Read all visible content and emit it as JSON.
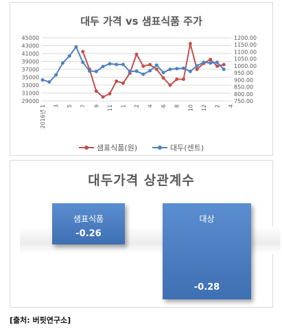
{
  "chart_data": [
    {
      "type": "line",
      "title": "대두 가격 vs 샘표식품 주가",
      "x": [
        "2016년 1",
        "2",
        "3",
        "4",
        "5",
        "6",
        "7",
        "8",
        "9",
        "10",
        "11",
        "12",
        "1",
        "2",
        "3",
        "4",
        "5",
        "6",
        "7",
        "8",
        "9",
        "10",
        "11",
        "12",
        "1",
        "2",
        "3",
        "4",
        "5"
      ],
      "xtick_labels": [
        "2016년 1",
        "3",
        "5",
        "7",
        "9",
        "11",
        "1",
        "2",
        "4",
        "6",
        "8",
        "10",
        "12",
        "2",
        "4"
      ],
      "ylim_left": [
        29000,
        45000
      ],
      "yticks_left": [
        "45000",
        "43000",
        "41000",
        "39000",
        "37000",
        "35000",
        "33000",
        "31000",
        "29000"
      ],
      "ylim_right": [
        750,
        1200
      ],
      "yticks_right": [
        "1200.00",
        "1150.00",
        "1100.00",
        "1050.00",
        "1000.00",
        "950.00",
        "900.00",
        "850.00",
        "800.00",
        "750.00"
      ],
      "series": [
        {
          "name": "샘표식품(원)",
          "axis": "left",
          "color": "#c0504d",
          "values": [
            null,
            null,
            null,
            null,
            null,
            null,
            41500,
            37000,
            31500,
            30000,
            30800,
            34000,
            33500,
            36000,
            40800,
            37800,
            38200,
            37000,
            34800,
            33000,
            34500,
            34500,
            43500,
            37000,
            38500,
            39500,
            37800,
            38200,
            null
          ]
        },
        {
          "name": "대두(센트)",
          "axis": "right",
          "color": "#4f81bd",
          "values": [
            900,
            885,
            935,
            1020,
            1070,
            1135,
            1025,
            963,
            960,
            995,
            1015,
            1010,
            1010,
            960,
            962,
            940,
            965,
            1005,
            952,
            975,
            980,
            983,
            960,
            1000,
            1025,
            1020,
            1025,
            975,
            null
          ]
        }
      ]
    },
    {
      "type": "bar",
      "title": "대두가격 상관계수",
      "categories": [
        "샘표식품",
        "대상"
      ],
      "values": [
        -0.26,
        -0.28
      ],
      "value_labels": [
        "-0.26",
        "-0.28"
      ]
    }
  ],
  "source": "[출처: 버핏연구소]"
}
